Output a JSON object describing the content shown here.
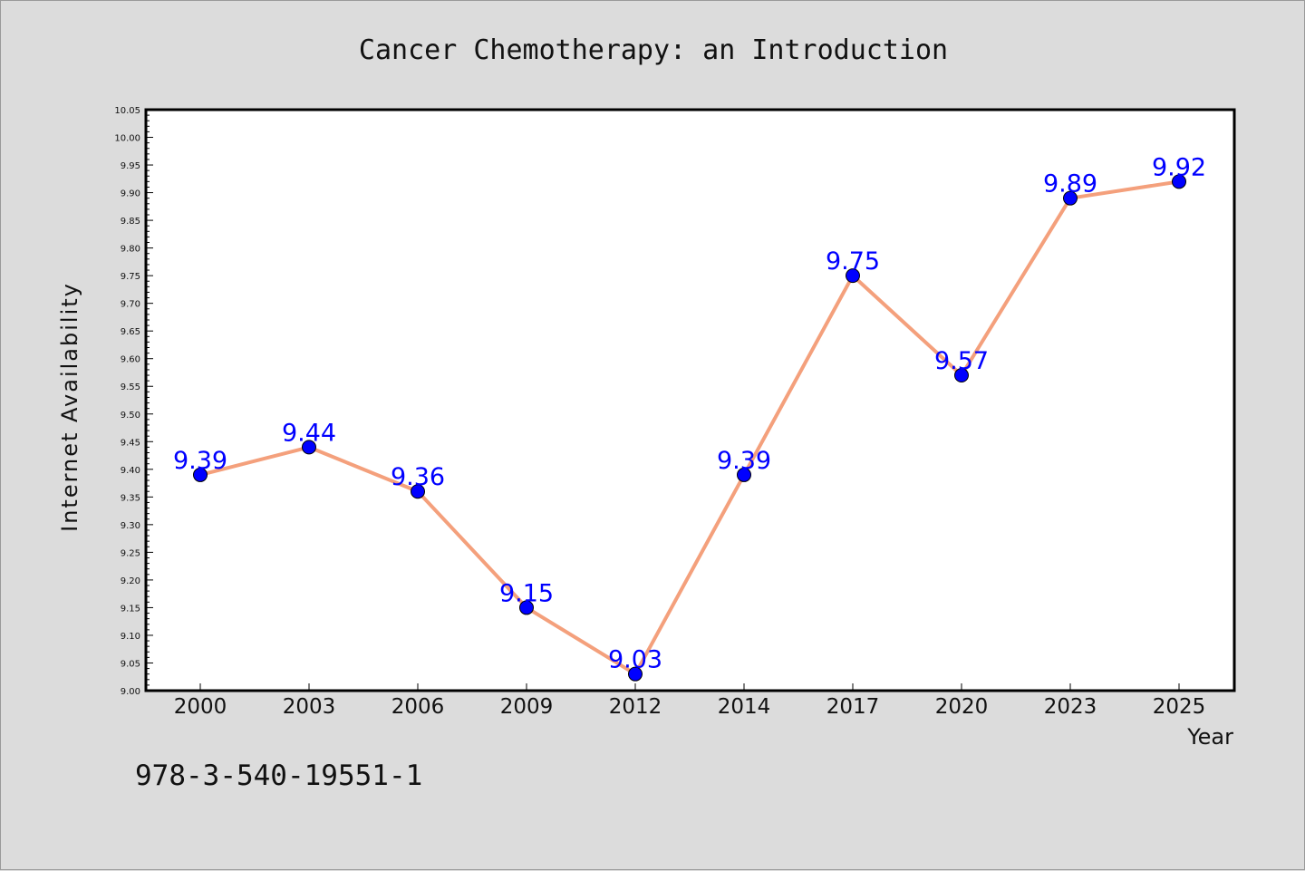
{
  "chart_data": {
    "type": "line",
    "title": "Cancer Chemotherapy: an Introduction",
    "xlabel": "Year",
    "ylabel": "Internet Availability",
    "categories": [
      "2000",
      "2003",
      "2006",
      "2009",
      "2012",
      "2014",
      "2017",
      "2020",
      "2023",
      "2025"
    ],
    "values": [
      9.39,
      9.44,
      9.36,
      9.15,
      9.03,
      9.39,
      9.75,
      9.57,
      9.89,
      9.92
    ],
    "data_labels": [
      "9.39",
      "9.44",
      "9.36",
      "9.15",
      "9.03",
      "9.39",
      "9.75",
      "9.57",
      "9.89",
      "9.92"
    ],
    "ylim": [
      9.0,
      10.05
    ],
    "yticks": [
      "9.00",
      "9.05",
      "9.10",
      "9.15",
      "9.20",
      "9.25",
      "9.30",
      "9.35",
      "9.40",
      "9.45",
      "9.50",
      "9.55",
      "9.60",
      "9.65",
      "9.70",
      "9.75",
      "9.80",
      "9.85",
      "9.90",
      "9.95",
      "10.00",
      "10.05"
    ],
    "grid": false,
    "line_color": "#f4a07c",
    "marker_color": "#0000ff",
    "label_color": "#0000ff"
  },
  "footer": {
    "isbn": "978-3-540-19551-1"
  }
}
